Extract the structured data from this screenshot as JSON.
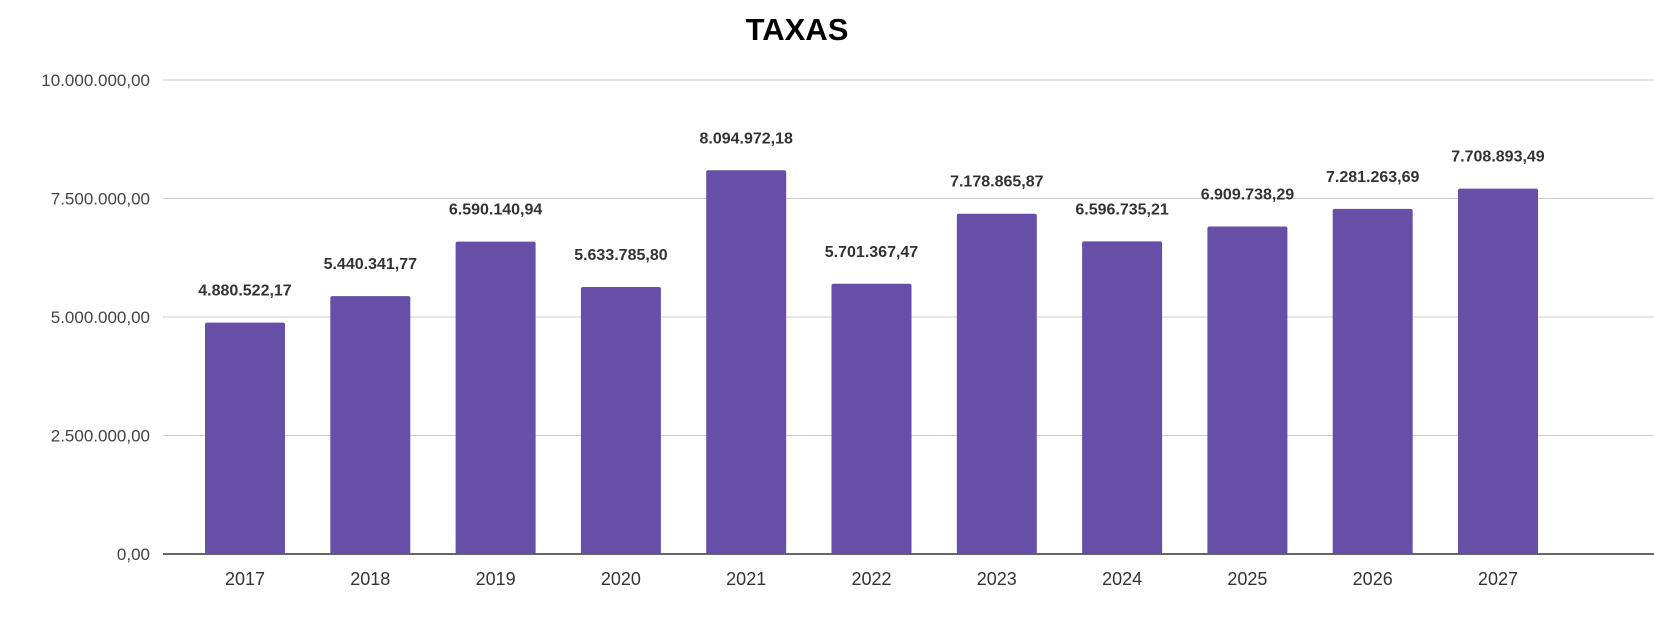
{
  "chart_data": {
    "type": "bar",
    "title": "TAXAS",
    "xlabel": "",
    "ylabel": "",
    "categories": [
      "2017",
      "2018",
      "2019",
      "2020",
      "2021",
      "2022",
      "2023",
      "2024",
      "2025",
      "2026",
      "2027"
    ],
    "values": [
      4880522.17,
      5440341.77,
      6590140.94,
      5633785.8,
      8094972.18,
      5701367.47,
      7178865.87,
      6596735.21,
      6909738.29,
      7281263.69,
      7708893.49
    ],
    "value_labels": [
      "4.880.522,17",
      "5.440.341,77",
      "6.590.140,94",
      "5.633.785,80",
      "8.094.972,18",
      "5.701.367,47",
      "7.178.865,87",
      "6.596.735,21",
      "6.909.738,29",
      "7.281.263,69",
      "7.708.893,49"
    ],
    "ylim": [
      0,
      10000000
    ],
    "y_ticks": [
      0,
      2500000,
      5000000,
      7500000,
      10000000
    ],
    "y_tick_labels": [
      "0,00",
      "2.500.000,00",
      "5.000.000,00",
      "7.500.000,00",
      "10.000.000,00"
    ],
    "grid": true,
    "legend": "none",
    "colors": {
      "bar": "#674ea7"
    }
  }
}
